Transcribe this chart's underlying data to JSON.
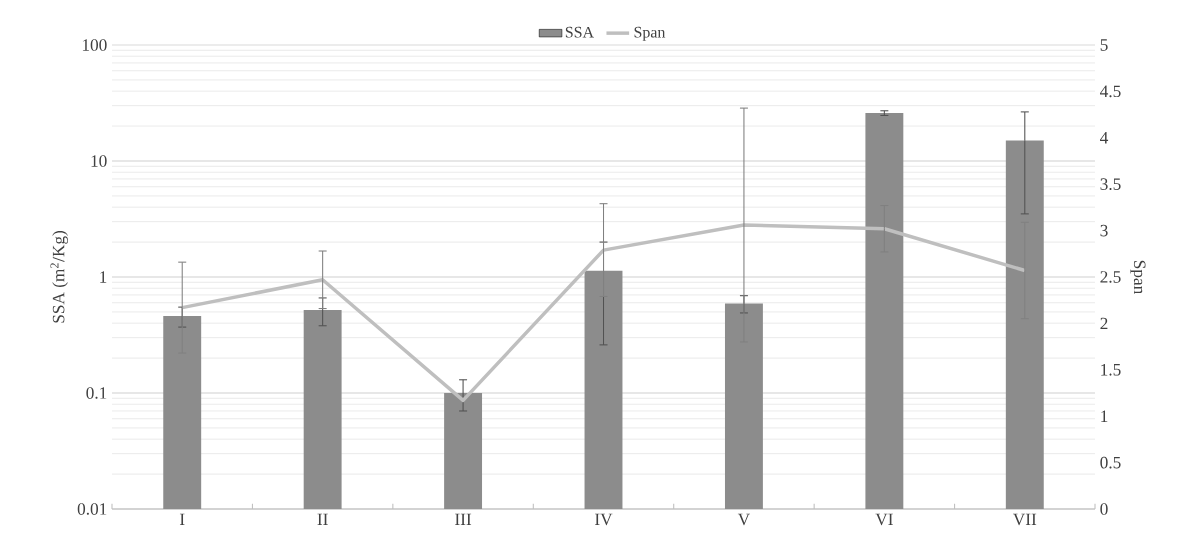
{
  "chart_data": {
    "type": "bar",
    "ylabel": "SSA (m$^{2}$/Kg)",
    "y2label": "Span",
    "categories": [
      "I",
      "II",
      "III",
      "IV",
      "V",
      "VI",
      "VII"
    ],
    "series": [
      {
        "name": "SSA",
        "type": "bar",
        "color": "#8c8c8c",
        "values": [
          0.46,
          0.52,
          0.1,
          1.13,
          0.59,
          25.9,
          15.0
        ],
        "errors": [
          0.09,
          0.14,
          0.03,
          0.87,
          0.1,
          1.2,
          11.5
        ]
      },
      {
        "name": "Span",
        "type": "line",
        "axis": "y2",
        "color": "#bfbfbf",
        "values": [
          2.17,
          2.47,
          1.17,
          2.79,
          3.06,
          3.02,
          2.57
        ],
        "errors": [
          0.49,
          0.31,
          null,
          0.5,
          1.26,
          0.25,
          0.52
        ]
      }
    ],
    "log": "y",
    "ylim": [
      0.01,
      100
    ],
    "yticks": [
      0.01,
      0.1,
      1,
      10,
      100
    ],
    "y2lim": [
      0,
      5
    ],
    "y2ticks": [
      0,
      0.5,
      1,
      1.5,
      2,
      2.5,
      3,
      3.5,
      4,
      4.5,
      5
    ],
    "grid": "y",
    "legend": "top",
    "line_style": "solid",
    "marker": "none"
  }
}
